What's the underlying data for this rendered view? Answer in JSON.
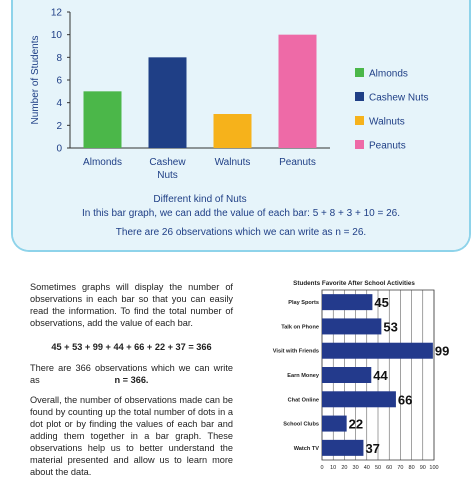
{
  "chart_data": [
    {
      "type": "bar",
      "title": "",
      "xlabel": "Different kind of Nuts",
      "ylabel": "Number of Students",
      "ylim": [
        0,
        12
      ],
      "yticks": [
        "0",
        "2",
        "4",
        "6",
        "8",
        "10",
        "12"
      ],
      "categories": [
        "Almonds",
        "Cashew Nuts",
        "Walnuts",
        "Peanuts"
      ],
      "values": [
        5,
        8,
        3,
        10
      ],
      "colors": [
        "#4bb749",
        "#1f3f86",
        "#f6b21b",
        "#ee6aa7"
      ],
      "legend": [
        "Almonds",
        "Cashew Nuts",
        "Walnuts",
        "Peanuts"
      ],
      "legend_position": "right",
      "grid": false
    },
    {
      "type": "bar",
      "orientation": "horizontal",
      "title": "Students Favorite After School Activities",
      "categories": [
        "Play Sports",
        "Talk on Phone",
        "Visit with Friends",
        "Earn Money",
        "Chat Online",
        "School Clubs",
        "Watch TV"
      ],
      "values": [
        45,
        53,
        99,
        44,
        66,
        22,
        37
      ],
      "data_labels": [
        "45",
        "53",
        "99",
        "44",
        "66",
        "22",
        "37"
      ],
      "xlim": [
        0,
        100
      ],
      "xticks": [
        "0",
        "10",
        "20",
        "30",
        "40",
        "50",
        "60",
        "70",
        "80",
        "90",
        "100"
      ],
      "bar_color": "#233a8c",
      "grid": true
    }
  ],
  "captions": {
    "line1": "In this bar graph, we can add the value of each bar: 5 + 8 + 3 + 10 = 26.",
    "line2": "There are 26 observations which we can write as n = 26."
  },
  "lower_text": {
    "para1": "Sometimes graphs will display the number of observations in each bar so that you can easily read the information. To find the total number of observations, add the value of each bar.",
    "equation": "45 + 53 + 99 + 44 + 66 + 22 + 37 = 366",
    "para2": "There are 366 observations which we can write as",
    "n_value": "n = 366.",
    "para3": "Overall, the number of observations made can be found by counting up the total number of dots in a dot plot or by finding the values of each bar and adding them together in a bar graph. These observations help us to better understand the material presented and allow us to learn more about the data."
  }
}
